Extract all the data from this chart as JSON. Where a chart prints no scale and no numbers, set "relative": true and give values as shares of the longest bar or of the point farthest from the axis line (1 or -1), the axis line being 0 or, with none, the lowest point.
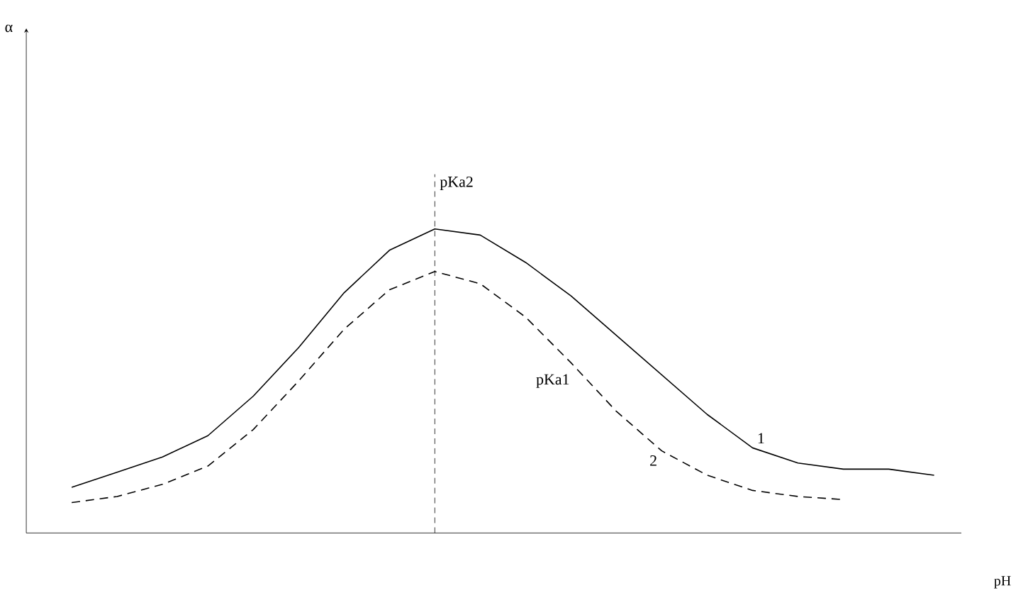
{
  "chart_data": {
    "type": "line",
    "relative": true,
    "xlabel": "pH",
    "categories": [
      null,
      null,
      null,
      null,
      null,
      null,
      null,
      null,
      null,
      null,
      null,
      null,
      null,
      null,
      null,
      null,
      null,
      null,
      null,
      null
    ],
    "series": [
      {
        "name": "1",
        "color": "#000000",
        "line_style": "solid",
        "values": [
          0.15,
          0.2,
          0.25,
          0.32,
          0.45,
          0.61,
          0.79,
          0.93,
          1,
          0.98,
          0.89,
          0.78,
          0.65,
          0.52,
          0.39,
          0.28,
          0.23,
          0.21,
          0.21,
          0.19
        ]
      },
      {
        "name": "2",
        "color": "#000000",
        "line_style": "dashed",
        "values": [
          0.1,
          0.12,
          0.16,
          0.22,
          0.34,
          0.5,
          0.67,
          0.8,
          0.86,
          0.82,
          0.71,
          0.56,
          0.4,
          0.27,
          0.19,
          0.14,
          0.12,
          0.11,
          null,
          null
        ]
      }
    ],
    "annotations": [
      "pKa2",
      "pKa1",
      "α"
    ]
  }
}
